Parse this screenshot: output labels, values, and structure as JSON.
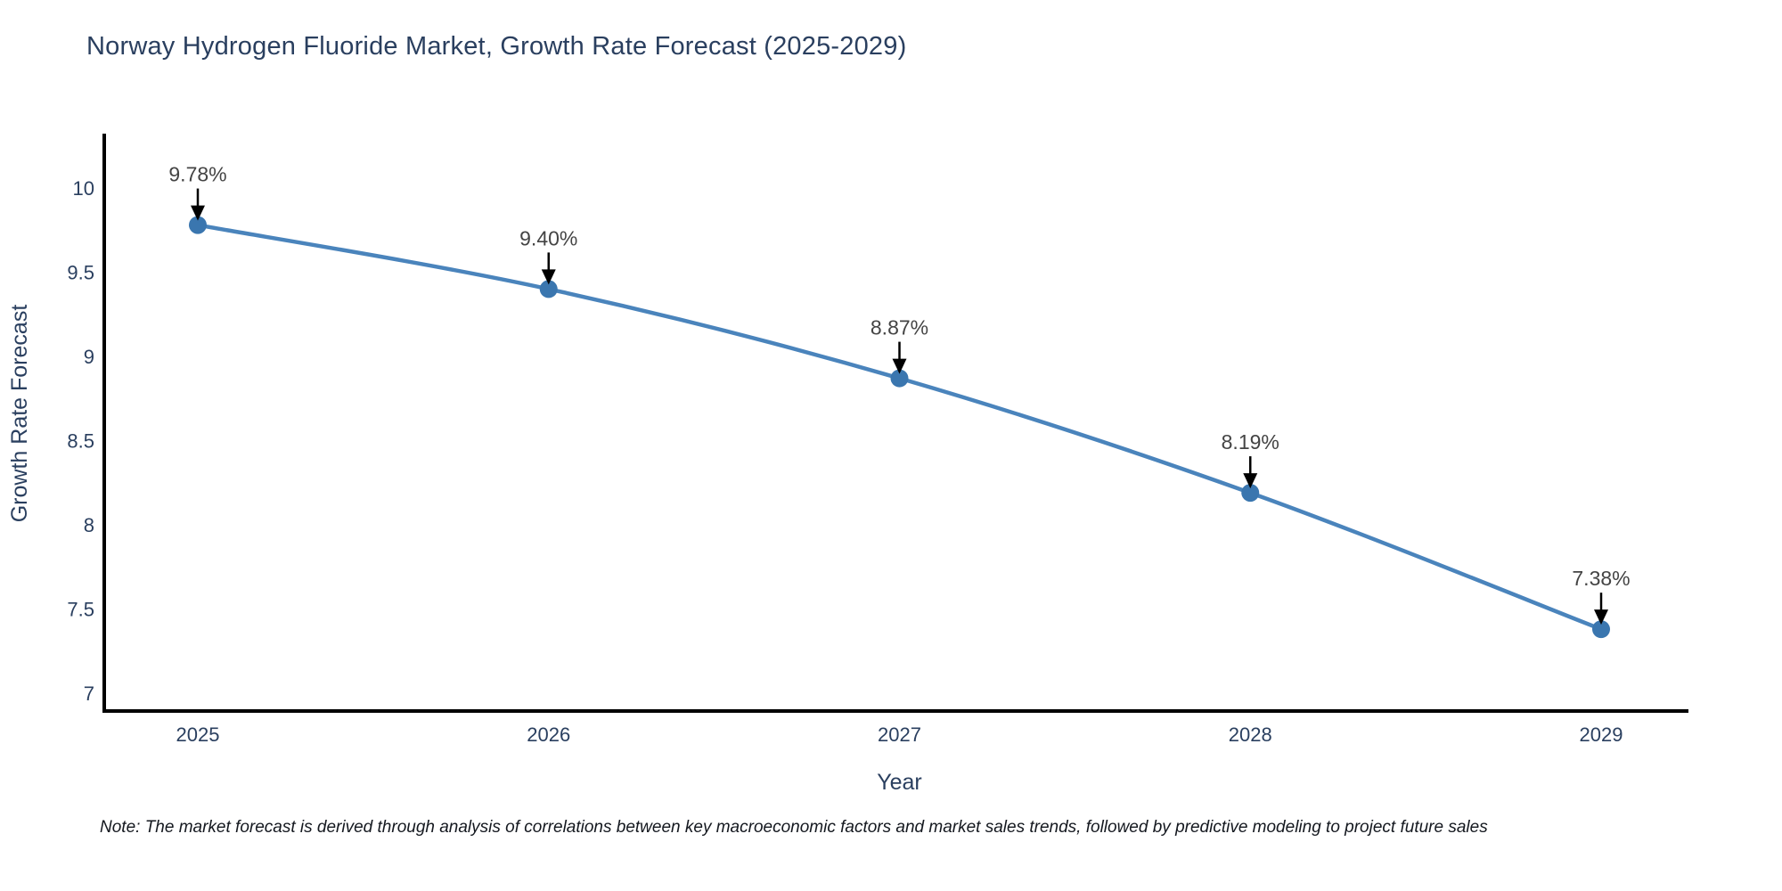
{
  "chart_data": {
    "type": "line",
    "title": "Norway Hydrogen Fluoride Market, Growth Rate Forecast (2025-2029)",
    "xlabel": "Year",
    "ylabel": "Growth Rate Forecast",
    "categories": [
      "2025",
      "2026",
      "2027",
      "2028",
      "2029"
    ],
    "series": [
      {
        "name": "Growth Rate Forecast",
        "values": [
          9.78,
          9.4,
          8.87,
          8.19,
          7.38
        ],
        "point_labels": [
          "9.78%",
          "9.40%",
          "8.87%",
          "8.19%",
          "7.38%"
        ]
      }
    ],
    "yticks": [
      7,
      7.5,
      8,
      8.5,
      9,
      9.5,
      10
    ],
    "ylim": [
      6.9,
      10.32
    ],
    "grid": false,
    "legend_position": "none",
    "annotation_style": "value label with down arrow pointing at marker",
    "colors": {
      "line": "#4a84bc",
      "marker": "#3a76af",
      "axis": "#000000",
      "labels": "#2a3f5f",
      "annotation_text": "#444444",
      "annotation_arrow": "#000000",
      "background": "#ffffff"
    },
    "note": "Note: The market forecast is derived through analysis of correlations between key macroeconomic factors and market sales trends, followed by predictive modeling to project future sales"
  }
}
